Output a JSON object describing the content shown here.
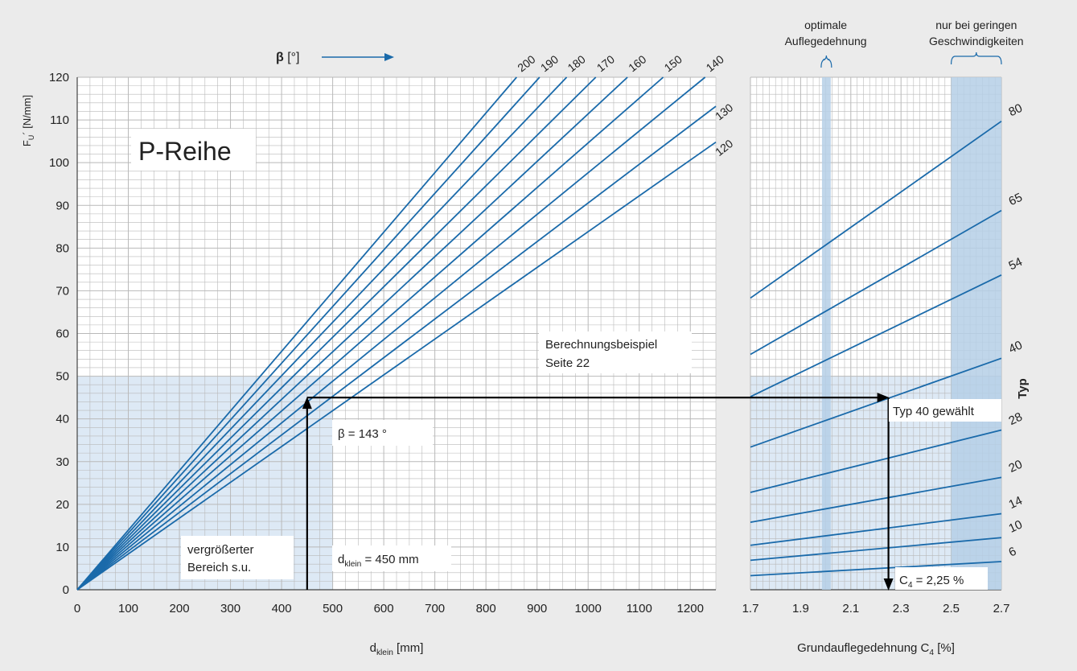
{
  "chart_data": [
    {
      "type": "line",
      "title": "P-Reihe",
      "ylabel_main": "F",
      "ylabel_sub": "U",
      "ylabel_rest": "´ [N/mm]",
      "xlabel_main": "d",
      "xlabel_sub": "klein",
      "xlabel_rest": " [mm]",
      "xlim": [
        0,
        1250
      ],
      "ylim": [
        0,
        120
      ],
      "grid": true,
      "x_ticks": [
        "0",
        "100",
        "200",
        "300",
        "400",
        "500",
        "600",
        "700",
        "800",
        "900",
        "1000",
        "1100",
        "1200"
      ],
      "y_ticks": [
        "0",
        "10",
        "20",
        "30",
        "40",
        "50",
        "60",
        "70",
        "80",
        "90",
        "100",
        "110",
        "120"
      ],
      "legend_heading": "β",
      "legend_unit": "[°]",
      "series": [
        {
          "name": "200",
          "x": [
            0,
            860
          ],
          "y": [
            0,
            120
          ]
        },
        {
          "name": "190",
          "x": [
            0,
            905
          ],
          "y": [
            0,
            120
          ]
        },
        {
          "name": "180",
          "x": [
            0,
            958
          ],
          "y": [
            0,
            120
          ]
        },
        {
          "name": "170",
          "x": [
            0,
            1015
          ],
          "y": [
            0,
            120
          ]
        },
        {
          "name": "160",
          "x": [
            0,
            1077
          ],
          "y": [
            0,
            120
          ]
        },
        {
          "name": "150",
          "x": [
            0,
            1147
          ],
          "y": [
            0,
            120
          ]
        },
        {
          "name": "140",
          "x": [
            0,
            1229
          ],
          "y": [
            0,
            120
          ]
        },
        {
          "name": "130",
          "x": [
            0,
            1250
          ],
          "y": [
            0,
            113.2
          ]
        },
        {
          "name": "120",
          "x": [
            0,
            1250
          ],
          "y": [
            0,
            104.8
          ]
        }
      ],
      "annotations": {
        "example": [
          "Berechnungsbeispiel",
          "Seite 22"
        ],
        "beta_value": "β = 143 °",
        "d_label_main": "d",
        "d_label_sub": "klein",
        "d_label_rest": " = 450 mm",
        "zoom_note": [
          "vergrößerter",
          "Bereich s.u."
        ]
      },
      "example_point": {
        "x": 450,
        "y": 45
      },
      "highlight_region": {
        "x": [
          0,
          500
        ],
        "y": [
          0,
          50
        ]
      }
    },
    {
      "type": "line",
      "xlabel_main": "Grundauflegedehnung C",
      "xlabel_sub": "4",
      "xlabel_rest": " [%]",
      "xlim": [
        1.7,
        2.7
      ],
      "ylim": [
        0,
        120
      ],
      "grid": true,
      "x_ticks": [
        "1.7",
        "1.9",
        "2.1",
        "2.3",
        "2.5",
        "2.7"
      ],
      "x_tick_values": [
        1.7,
        1.9,
        2.1,
        2.3,
        2.5,
        2.7
      ],
      "series_label_heading": "Typ",
      "series": [
        {
          "name": "80",
          "x": [
            1.7,
            2.7
          ],
          "y": [
            68.3,
            109.7
          ]
        },
        {
          "name": "65",
          "x": [
            1.7,
            2.7
          ],
          "y": [
            55.1,
            88.8
          ]
        },
        {
          "name": "54",
          "x": [
            1.7,
            2.7
          ],
          "y": [
            45.2,
            73.7
          ]
        },
        {
          "name": "40",
          "x": [
            1.7,
            2.7
          ],
          "y": [
            33.4,
            54.2
          ]
        },
        {
          "name": "28",
          "x": [
            1.7,
            2.7
          ],
          "y": [
            22.8,
            37.4
          ]
        },
        {
          "name": "20",
          "x": [
            1.7,
            2.7
          ],
          "y": [
            15.8,
            26.3
          ]
        },
        {
          "name": "14",
          "x": [
            1.7,
            2.7
          ],
          "y": [
            10.4,
            17.8
          ]
        },
        {
          "name": "10",
          "x": [
            1.7,
            2.7
          ],
          "y": [
            6.9,
            12.2
          ]
        },
        {
          "name": "6",
          "x": [
            1.7,
            2.7
          ],
          "y": [
            3.3,
            6.6
          ]
        }
      ],
      "bands": [
        {
          "label": [
            "optimale",
            "Auflegedehnung"
          ],
          "x": [
            1.985,
            2.02
          ]
        },
        {
          "label": [
            "nur bei geringen",
            "Geschwindigkeiten"
          ],
          "x": [
            2.5,
            2.7
          ]
        }
      ],
      "annotations": {
        "type_chosen": "Typ 40 gewählt",
        "c4_main": "C",
        "c4_sub": "4",
        "c4_rest": " = 2,25 %"
      },
      "example_point": {
        "x": 2.25,
        "y": 45
      },
      "highlight_region": {
        "y": [
          0,
          50
        ]
      }
    }
  ],
  "colors": {
    "line": "#1a6aaa",
    "grid": "#b9b9b9",
    "band": "#b5cfe6",
    "highlight": "#dde9f5",
    "arrow": "#000000",
    "background": "#ebebeb"
  }
}
